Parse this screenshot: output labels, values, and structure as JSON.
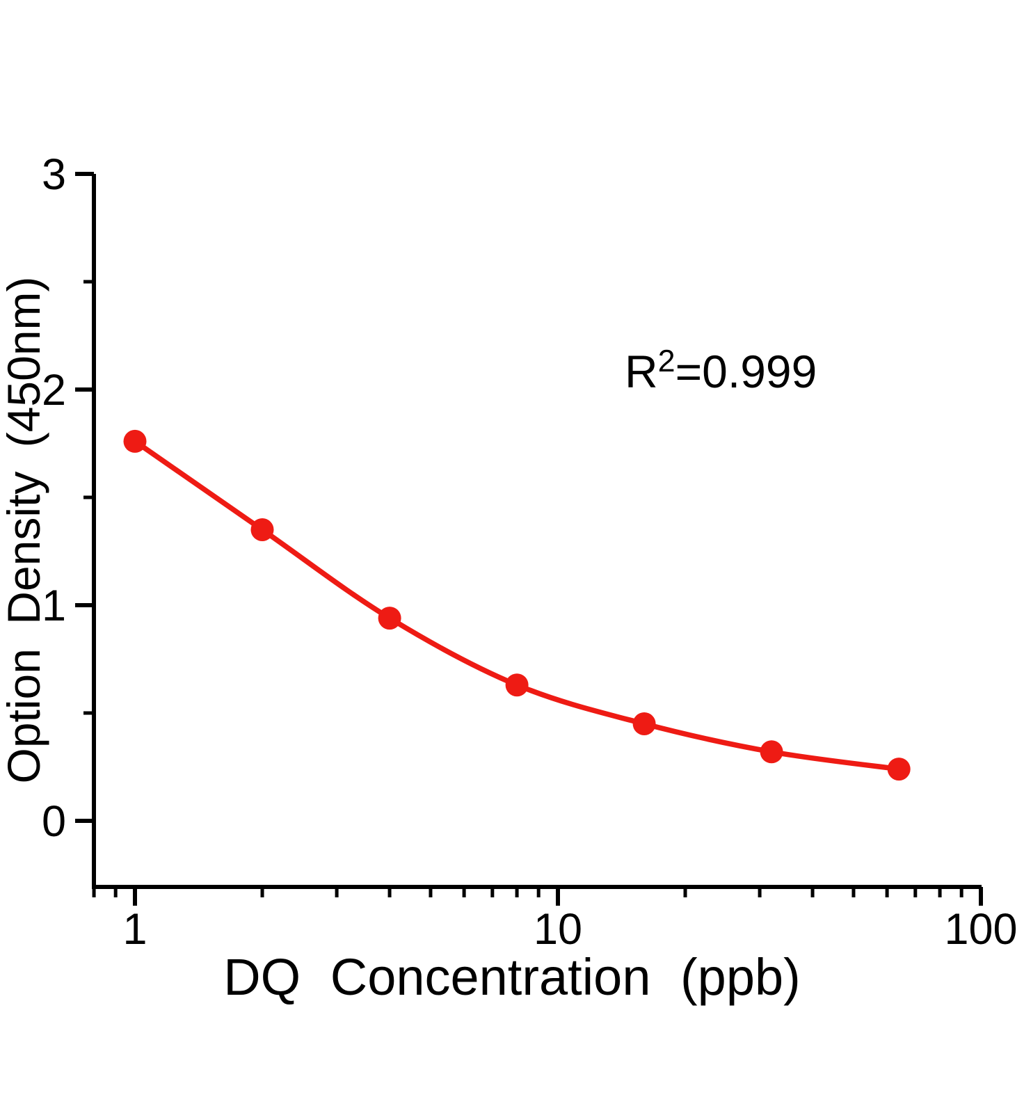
{
  "figure": {
    "background_color": "#ffffff",
    "axis_color": "#000000",
    "accent_color": "#ee1b14",
    "annotation": {
      "base": "R",
      "exponent": "2",
      "value": "=0.999",
      "text": "R²=0.999"
    }
  },
  "chart_data": {
    "type": "scatter",
    "title": "",
    "xlabel": "DQ Concentration (ppb)",
    "ylabel": "Option Density (450nm)",
    "x_scale": "log",
    "y_scale": "linear",
    "x": [
      1,
      2,
      4,
      8,
      16,
      32,
      64
    ],
    "y": [
      1.76,
      1.35,
      0.94,
      0.63,
      0.45,
      0.32,
      0.24
    ],
    "r_squared": 0.999,
    "series_color": "#ee1b14",
    "marker": "circle",
    "line_style": "smooth-fit-curve",
    "grid": false,
    "legend": "none",
    "xlim": [
      0.8,
      100
    ],
    "ylim": [
      -0.31,
      3
    ],
    "x_ticks": {
      "major": [
        1,
        10,
        100
      ],
      "labels": [
        "1",
        "10",
        "100"
      ],
      "minor": [
        0.8,
        0.9,
        2,
        3,
        4,
        5,
        6,
        7,
        8,
        9,
        20,
        30,
        40,
        50,
        60,
        70,
        80,
        90
      ]
    },
    "y_ticks": {
      "major": [
        0,
        1,
        2,
        3
      ],
      "labels": [
        "0",
        "1",
        "2",
        "3"
      ],
      "minor": [
        0.5,
        1.5,
        2.5
      ]
    }
  }
}
